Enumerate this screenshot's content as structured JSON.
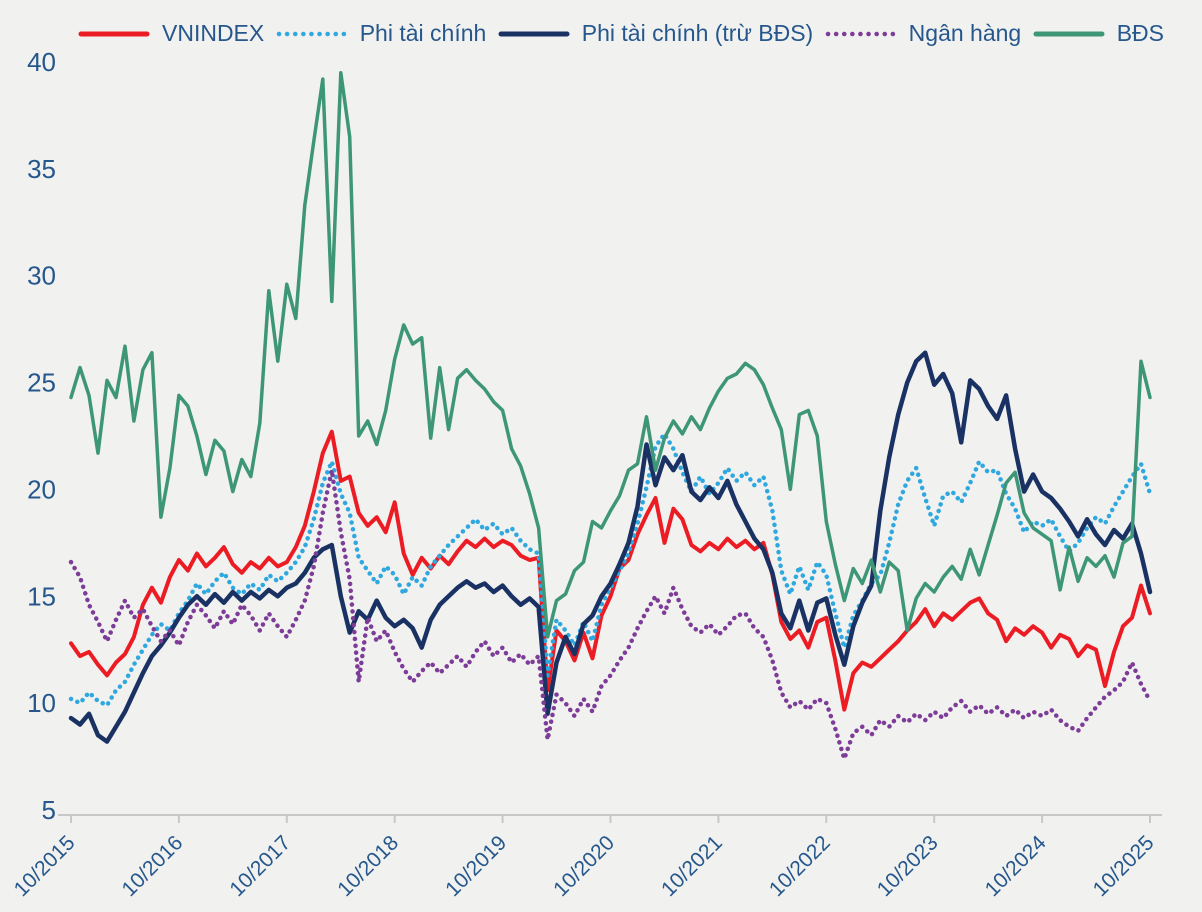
{
  "page": {
    "background": "#F1F1EF",
    "title": ""
  },
  "legend": {
    "position": "top",
    "text_color": "#26578C",
    "items": [
      {
        "label": "VNINDEX",
        "color": "#EC1C24",
        "style": "solid"
      },
      {
        "label": "Phi tài chính",
        "color": "#2FA8DF",
        "style": "dotted"
      },
      {
        "label": "Phi tài chính (trừ BĐS)",
        "color": "#1A3263",
        "style": "solid"
      },
      {
        "label": "Ngân hàng",
        "color": "#7D3C98",
        "style": "dotted"
      },
      {
        "label": "BĐS",
        "color": "#3E9678",
        "style": "solid"
      }
    ]
  },
  "chart_data": {
    "type": "line",
    "title": "",
    "xlabel": "",
    "ylabel": "",
    "grid": "off",
    "legend_position": "top",
    "axis_color": "#C8C8C6",
    "label_color": "#26578C",
    "x": {
      "unit": "months since 10/2015",
      "months_total": 120,
      "tick_interval_months": 12,
      "tick_labels": [
        "10/2015",
        "10/2016",
        "10/2017",
        "10/2018",
        "10/2019",
        "10/2020",
        "10/2021",
        "10/2022",
        "10/2023",
        "10/2024",
        "10/2025"
      ]
    },
    "y": {
      "min": 5,
      "max": 40,
      "ticks": [
        5,
        10,
        15,
        20,
        25,
        30,
        35,
        40
      ]
    },
    "series": [
      {
        "name": "VNINDEX",
        "color": "#EC1C24",
        "style": "solid",
        "line_width": 4,
        "values": [
          12.8,
          12.2,
          12.4,
          11.8,
          11.3,
          11.9,
          12.3,
          13.1,
          14.6,
          15.4,
          14.7,
          15.9,
          16.7,
          16.2,
          17.0,
          16.4,
          16.8,
          17.3,
          16.5,
          16.1,
          16.6,
          16.3,
          16.8,
          16.4,
          16.6,
          17.3,
          18.3,
          19.9,
          21.7,
          22.7,
          20.4,
          20.6,
          18.9,
          18.3,
          18.7,
          18.0,
          19.4,
          17.0,
          16.0,
          16.8,
          16.3,
          16.9,
          16.5,
          17.1,
          17.6,
          17.3,
          17.7,
          17.3,
          17.6,
          17.4,
          16.9,
          16.7,
          16.8,
          10.6,
          13.4,
          12.9,
          12.0,
          13.3,
          12.1,
          14.1,
          15.0,
          16.3,
          16.7,
          17.9,
          18.8,
          19.6,
          17.5,
          19.1,
          18.6,
          17.4,
          17.1,
          17.5,
          17.2,
          17.7,
          17.3,
          17.6,
          17.2,
          17.5,
          16.0,
          13.8,
          13.0,
          13.4,
          12.6,
          13.8,
          14.0,
          12.0,
          9.7,
          11.4,
          11.9,
          11.7,
          12.1,
          12.5,
          12.9,
          13.4,
          13.8,
          14.4,
          13.6,
          14.2,
          13.9,
          14.3,
          14.7,
          14.9,
          14.2,
          13.9,
          12.9,
          13.5,
          13.2,
          13.6,
          13.3,
          12.6,
          13.2,
          13.0,
          12.2,
          12.7,
          12.5,
          10.8,
          12.4,
          13.6,
          14.0,
          15.5,
          14.2
        ]
      },
      {
        "name": "Phi tài chính",
        "color": "#2FA8DF",
        "style": "dotted",
        "line_width": 4.5,
        "values": [
          10.2,
          10.0,
          10.5,
          10.1,
          9.9,
          10.6,
          11.0,
          11.8,
          12.5,
          13.2,
          13.7,
          13.4,
          14.2,
          14.8,
          15.6,
          15.1,
          15.7,
          16.1,
          15.4,
          15.1,
          15.6,
          15.3,
          16.0,
          15.7,
          16.1,
          16.6,
          17.3,
          18.6,
          20.3,
          21.3,
          19.8,
          18.9,
          16.8,
          16.2,
          15.6,
          16.4,
          16.0,
          15.1,
          15.9,
          15.5,
          16.4,
          16.9,
          17.4,
          17.8,
          18.2,
          18.6,
          18.1,
          18.4,
          17.9,
          18.2,
          17.6,
          17.2,
          17.0,
          11.3,
          13.9,
          13.4,
          12.7,
          13.8,
          12.9,
          14.6,
          15.4,
          16.2,
          17.0,
          18.4,
          20.1,
          22.0,
          22.6,
          21.9,
          20.8,
          19.9,
          20.6,
          19.8,
          20.3,
          21.0,
          20.4,
          20.8,
          20.2,
          20.6,
          19.0,
          16.2,
          15.1,
          16.4,
          15.3,
          16.6,
          16.0,
          14.2,
          12.6,
          14.1,
          14.8,
          15.6,
          16.0,
          17.5,
          19.3,
          20.4,
          21.0,
          19.6,
          18.3,
          19.7,
          19.9,
          19.4,
          20.3,
          21.3,
          20.8,
          20.9,
          19.8,
          19.1,
          18.0,
          18.5,
          18.3,
          18.6,
          17.8,
          17.1,
          17.5,
          18.2,
          18.7,
          18.4,
          19.2,
          19.9,
          20.6,
          21.2,
          19.8
        ]
      },
      {
        "name": "Phi tài chính (trừ BĐS)",
        "color": "#1A3263",
        "style": "solid",
        "line_width": 4.5,
        "values": [
          9.3,
          9.0,
          9.5,
          8.5,
          8.2,
          8.9,
          9.6,
          10.5,
          11.4,
          12.2,
          12.7,
          13.3,
          14.0,
          14.6,
          15.0,
          14.6,
          15.1,
          14.7,
          15.2,
          14.8,
          15.2,
          14.9,
          15.3,
          15.0,
          15.4,
          15.6,
          16.1,
          16.8,
          17.2,
          17.4,
          15.0,
          13.3,
          14.3,
          13.9,
          14.8,
          14.0,
          13.6,
          13.9,
          13.5,
          12.6,
          13.9,
          14.6,
          15.0,
          15.4,
          15.7,
          15.4,
          15.6,
          15.2,
          15.5,
          15.0,
          14.6,
          14.9,
          14.5,
          9.5,
          11.9,
          13.1,
          12.3,
          13.7,
          14.1,
          15.0,
          15.6,
          16.5,
          17.5,
          19.2,
          22.1,
          20.2,
          21.5,
          20.9,
          21.6,
          19.9,
          19.5,
          20.1,
          19.6,
          20.4,
          19.3,
          18.5,
          17.7,
          17.2,
          16.1,
          14.2,
          13.5,
          14.8,
          13.4,
          14.7,
          14.9,
          13.2,
          11.8,
          13.6,
          14.7,
          15.5,
          19.0,
          21.5,
          23.5,
          25.0,
          26.0,
          26.4,
          24.9,
          25.4,
          24.5,
          22.2,
          25.1,
          24.7,
          23.9,
          23.3,
          24.4,
          21.9,
          19.9,
          20.7,
          19.9,
          19.6,
          19.1,
          18.5,
          17.8,
          18.6,
          17.9,
          17.4,
          18.1,
          17.7,
          18.4,
          17.0,
          15.2
        ]
      },
      {
        "name": "Ngân hàng",
        "color": "#7D3C98",
        "style": "dotted",
        "line_width": 4.5,
        "values": [
          16.6,
          15.9,
          14.6,
          13.8,
          12.9,
          13.9,
          14.8,
          14.0,
          14.4,
          13.6,
          12.9,
          13.4,
          12.7,
          13.8,
          14.6,
          14.1,
          13.5,
          14.3,
          13.7,
          14.6,
          14.1,
          13.4,
          14.2,
          13.6,
          13.1,
          13.9,
          14.8,
          16.4,
          18.9,
          20.9,
          18.0,
          15.8,
          11.0,
          14.0,
          12.9,
          13.4,
          12.4,
          11.6,
          11.0,
          11.5,
          11.9,
          11.4,
          11.8,
          12.2,
          11.7,
          12.4,
          12.9,
          12.2,
          12.6,
          11.9,
          12.3,
          11.8,
          12.2,
          8.3,
          10.4,
          10.0,
          9.4,
          10.2,
          9.6,
          10.8,
          11.3,
          12.0,
          12.6,
          13.5,
          14.3,
          15.0,
          14.2,
          15.4,
          14.4,
          13.6,
          13.3,
          13.7,
          13.2,
          13.6,
          14.1,
          14.2,
          13.5,
          13.1,
          12.0,
          10.5,
          9.8,
          10.1,
          9.7,
          10.2,
          10.0,
          8.8,
          7.4,
          8.6,
          8.9,
          8.5,
          9.2,
          8.9,
          9.4,
          9.1,
          9.5,
          9.2,
          9.6,
          9.3,
          9.8,
          10.1,
          9.6,
          9.9,
          9.5,
          9.8,
          9.4,
          9.7,
          9.3,
          9.6,
          9.4,
          9.7,
          9.2,
          8.9,
          8.7,
          9.3,
          9.8,
          10.3,
          10.6,
          11.0,
          11.9,
          10.9,
          10.1
        ]
      },
      {
        "name": "BĐS",
        "color": "#3E9678",
        "style": "solid",
        "line_width": 3.5,
        "values": [
          24.3,
          25.7,
          24.4,
          21.7,
          25.1,
          24.3,
          26.7,
          23.2,
          25.6,
          26.4,
          18.7,
          21.0,
          24.4,
          23.9,
          22.5,
          20.7,
          22.3,
          21.8,
          19.9,
          21.4,
          20.6,
          23.1,
          29.3,
          26.0,
          29.6,
          28.0,
          33.3,
          36.3,
          39.2,
          28.8,
          39.5,
          36.5,
          22.5,
          23.2,
          22.1,
          23.7,
          26.1,
          27.7,
          26.8,
          27.1,
          22.4,
          25.7,
          22.8,
          25.2,
          25.6,
          25.1,
          24.7,
          24.1,
          23.7,
          21.9,
          21.1,
          19.8,
          18.2,
          13.1,
          14.8,
          15.1,
          16.2,
          16.6,
          18.5,
          18.2,
          19.0,
          19.7,
          20.9,
          21.2,
          23.4,
          20.9,
          22.4,
          23.2,
          22.6,
          23.4,
          22.8,
          23.8,
          24.6,
          25.2,
          25.4,
          25.9,
          25.6,
          24.9,
          23.8,
          22.8,
          20.0,
          23.5,
          23.7,
          22.5,
          18.5,
          16.5,
          14.8,
          16.3,
          15.6,
          16.7,
          15.2,
          16.6,
          16.2,
          13.4,
          14.9,
          15.6,
          15.2,
          15.9,
          16.4,
          15.8,
          17.2,
          16.0,
          17.4,
          18.8,
          20.3,
          20.8,
          18.9,
          18.2,
          17.9,
          17.6,
          15.3,
          17.3,
          15.7,
          16.8,
          16.4,
          16.9,
          15.9,
          17.5,
          17.8,
          26.0,
          24.3
        ]
      }
    ]
  }
}
